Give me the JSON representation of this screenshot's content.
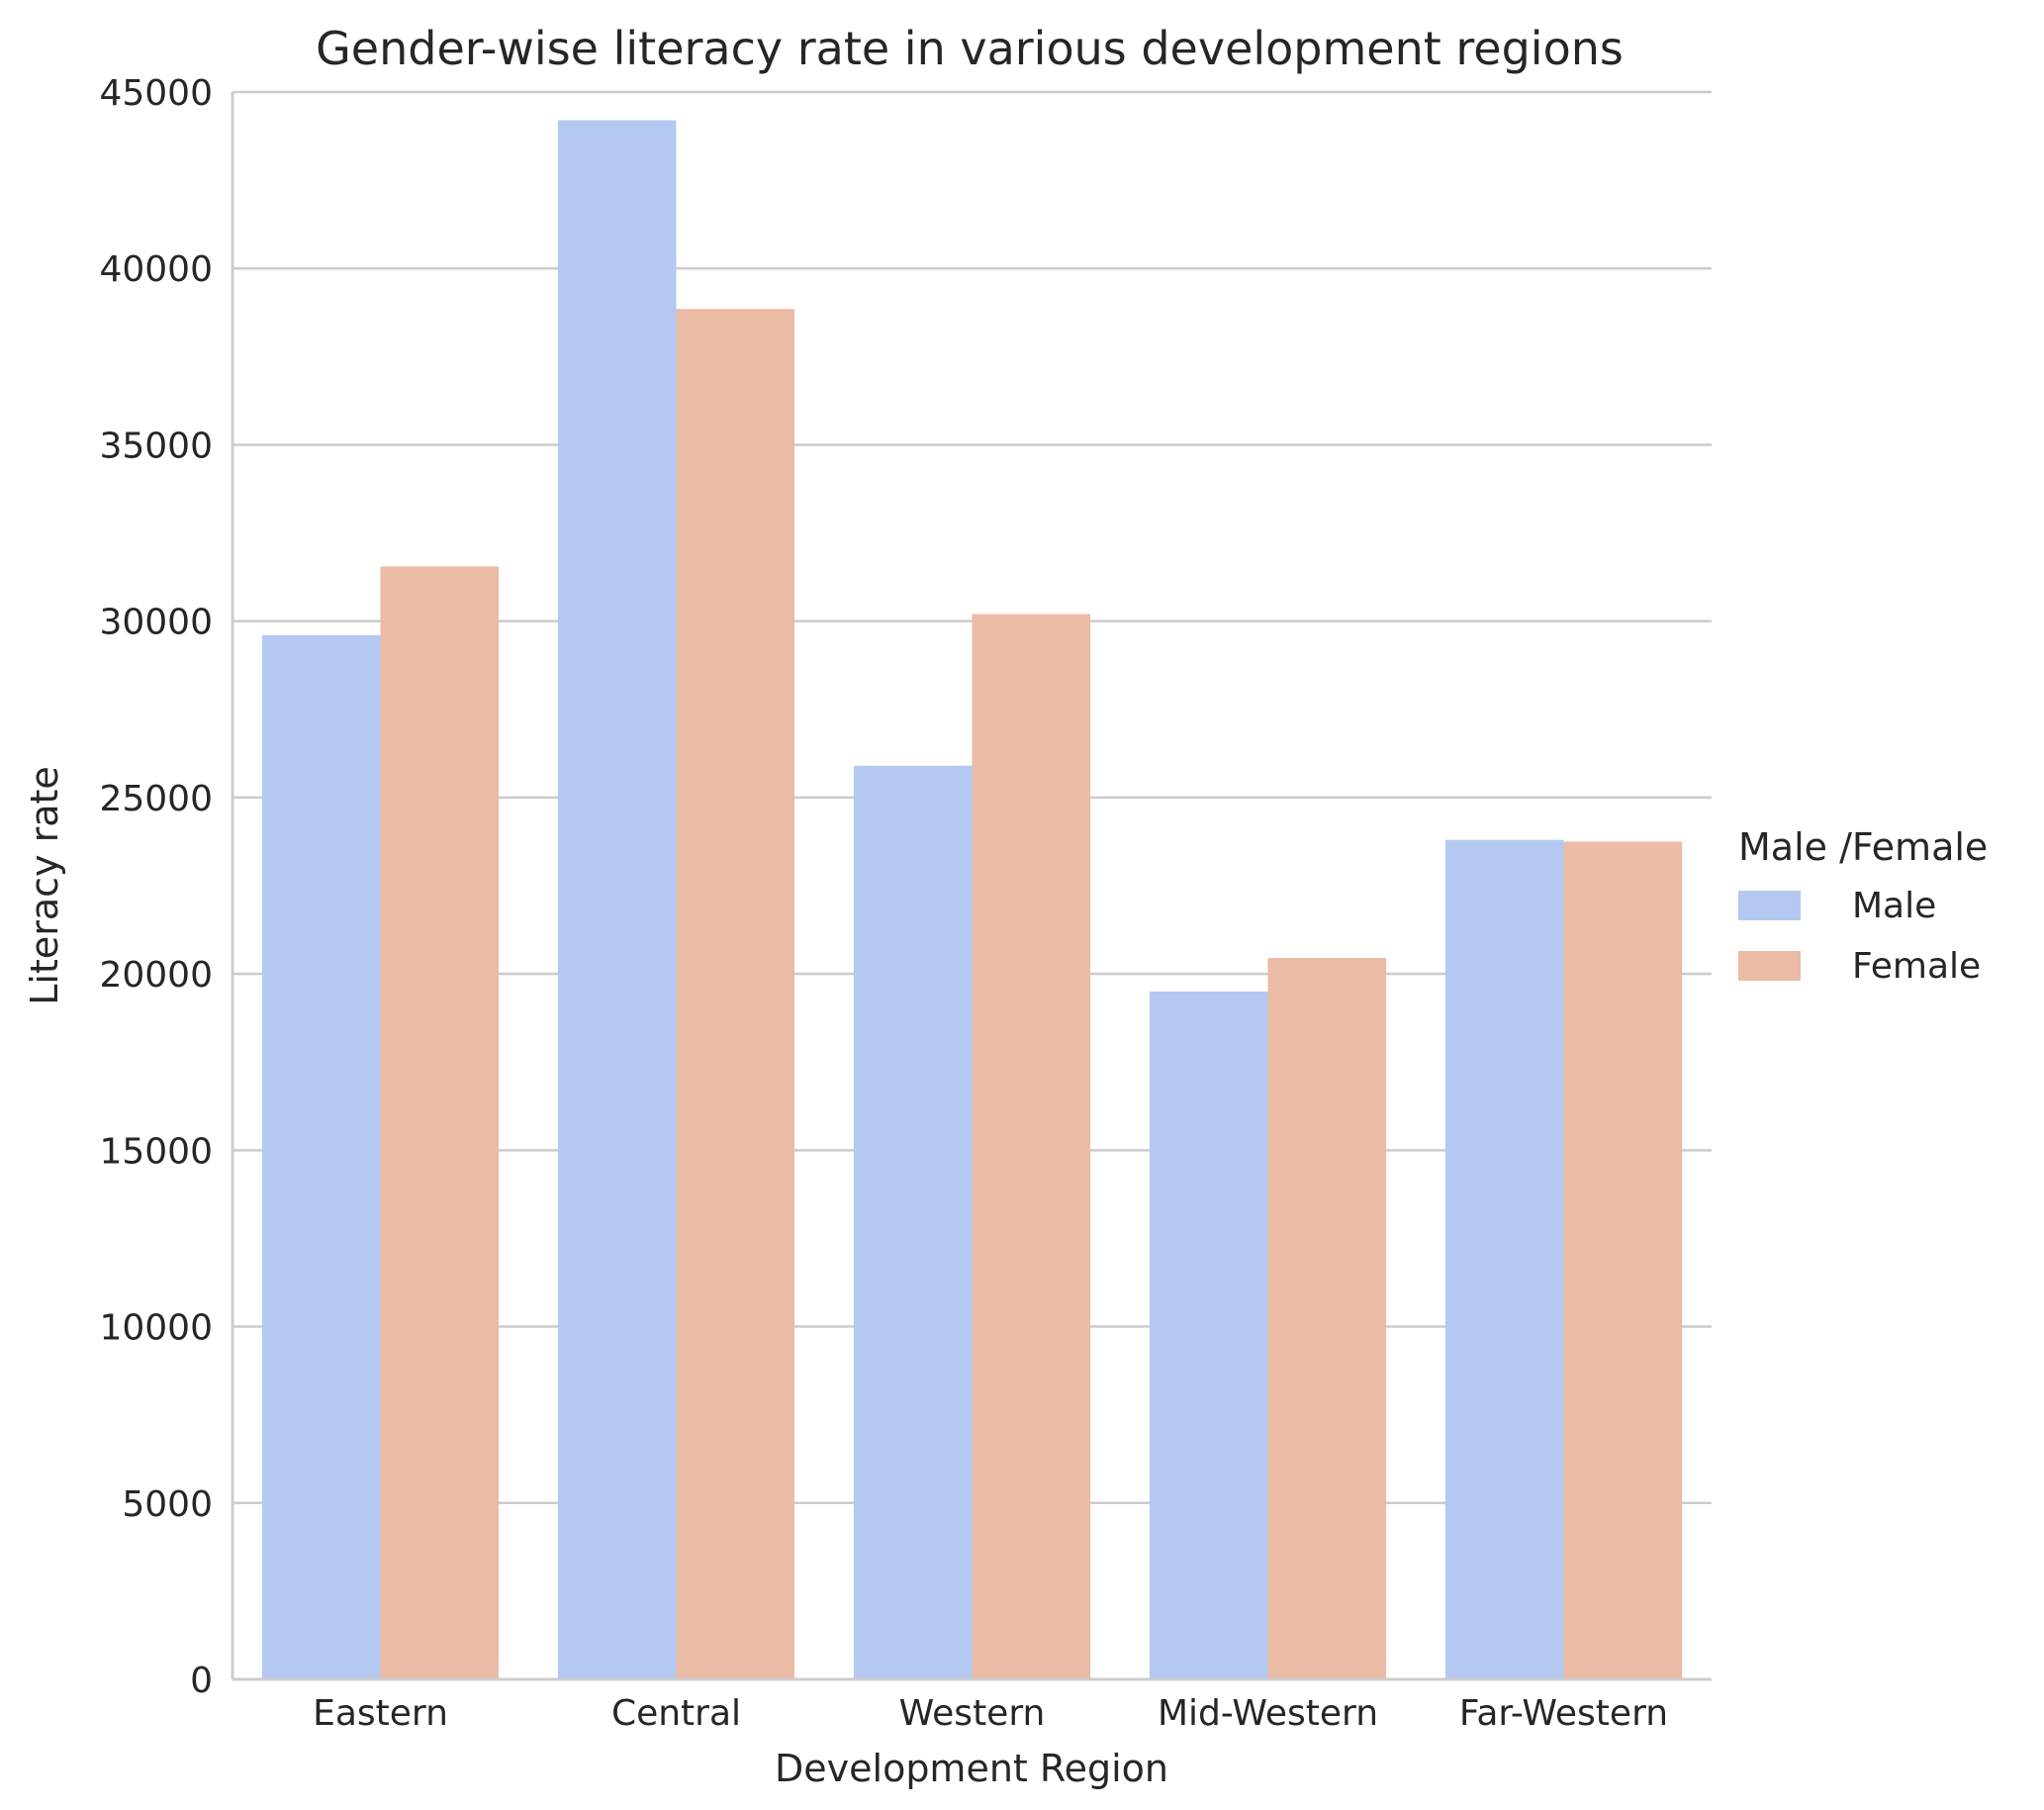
{
  "chart_data": {
    "type": "bar",
    "title": "Gender-wise literacy rate in various development regions",
    "xlabel": "Development Region",
    "ylabel": "Literacy rate",
    "categories": [
      "Eastern",
      "Central",
      "Western",
      "Mid-Western",
      "Far-Western"
    ],
    "series": [
      {
        "name": "Male",
        "color": "#b3c9f2",
        "values": [
          29600,
          44200,
          25900,
          19500,
          23800
        ]
      },
      {
        "name": "Female",
        "color": "#ebbba6",
        "values": [
          31550,
          38850,
          30200,
          20450,
          23750
        ]
      }
    ],
    "ylim": [
      0,
      45000
    ],
    "yticks": [
      "0",
      "5000",
      "10000",
      "15000",
      "20000",
      "25000",
      "30000",
      "35000",
      "40000",
      "45000"
    ],
    "grid": "horizontal",
    "legend": {
      "title": "Male /Female",
      "placement": "right"
    }
  }
}
